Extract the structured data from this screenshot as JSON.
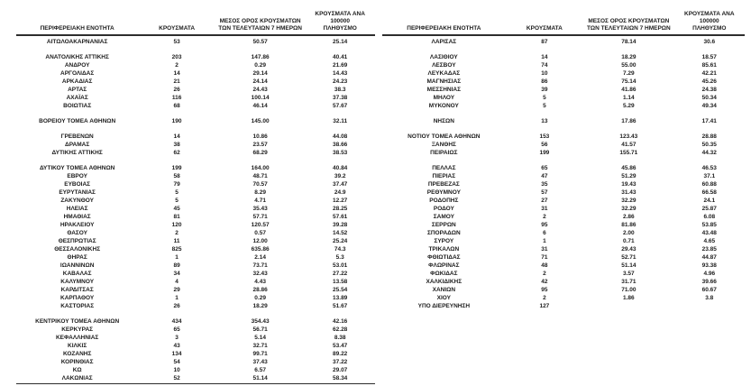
{
  "page": {
    "background_color": "#ffffff",
    "text_color": "#1c1c1c"
  },
  "columns": {
    "region": "ΠΕΡΙΦΕΡΕΙΑΚΗ ΕΝΟΤΗΤΑ",
    "cases": "ΚΡΟΥΣΜΑΤΑ",
    "avg7_line1": "ΜΕΣΟΣ ΟΡΟΣ ΚΡΟΥΣΜΑΤΩΝ",
    "avg7_line2": "ΤΩΝ ΤΕΛΕΥΤΑΙΩΝ 7 ΗΜΕΡΩΝ",
    "per100k_line1": "ΚΡΟΥΣΜΑΤΑ ΑΝΑ 100000",
    "per100k_line2": "ΠΛΗΘΥΣΜΟ"
  },
  "tables": [
    {
      "id": "left",
      "has_bottom_line": true,
      "groups": [
        [
          {
            "region": "ΑΙΤΩΛΟΑΚΑΡΝΑΝΙΑΣ",
            "cases": "53",
            "avg7": "50.57",
            "per100k": "25.14"
          }
        ],
        [
          {
            "region": "ΑΝΑΤΟΛΙΚΗΣ ΑΤΤΙΚΗΣ",
            "cases": "203",
            "avg7": "147.86",
            "per100k": "40.41"
          },
          {
            "region": "ΑΝΔΡΟΥ",
            "cases": "2",
            "avg7": "0.29",
            "per100k": "21.69"
          },
          {
            "region": "ΑΡΓΟΛΙΔΑΣ",
            "cases": "14",
            "avg7": "29.14",
            "per100k": "14.43"
          },
          {
            "region": "ΑΡΚΑΔΙΑΣ",
            "cases": "21",
            "avg7": "24.14",
            "per100k": "24.23"
          },
          {
            "region": "ΑΡΤΑΣ",
            "cases": "26",
            "avg7": "24.43",
            "per100k": "38.3"
          },
          {
            "region": "ΑΧΑΪΑΣ",
            "cases": "116",
            "avg7": "100.14",
            "per100k": "37.38"
          },
          {
            "region": "ΒΟΙΩΤΙΑΣ",
            "cases": "68",
            "avg7": "46.14",
            "per100k": "57.67"
          }
        ],
        [
          {
            "region": "ΒΟΡΕΙΟΥ ΤΟΜΕΑ ΑΘΗΝΩΝ",
            "cases": "190",
            "avg7": "145.00",
            "per100k": "32.11"
          }
        ],
        [
          {
            "region": "ΓΡΕΒΕΝΩΝ",
            "cases": "14",
            "avg7": "10.86",
            "per100k": "44.08"
          },
          {
            "region": "ΔΡΑΜΑΣ",
            "cases": "38",
            "avg7": "23.57",
            "per100k": "38.66"
          },
          {
            "region": "ΔΥΤΙΚΗΣ ΑΤΤΙΚΗΣ",
            "cases": "62",
            "avg7": "68.29",
            "per100k": "38.53"
          }
        ],
        [
          {
            "region": "ΔΥΤΙΚΟΥ ΤΟΜΕΑ ΑΘΗΝΩΝ",
            "cases": "199",
            "avg7": "164.00",
            "per100k": "40.84"
          },
          {
            "region": "ΕΒΡΟΥ",
            "cases": "58",
            "avg7": "48.71",
            "per100k": "39.2"
          },
          {
            "region": "ΕΥΒΟΙΑΣ",
            "cases": "79",
            "avg7": "70.57",
            "per100k": "37.47"
          },
          {
            "region": "ΕΥΡΥΤΑΝΙΑΣ",
            "cases": "5",
            "avg7": "8.29",
            "per100k": "24.9"
          },
          {
            "region": "ΖΑΚΥΝΘΟΥ",
            "cases": "5",
            "avg7": "4.71",
            "per100k": "12.27"
          },
          {
            "region": "ΗΛΕΙΑΣ",
            "cases": "45",
            "avg7": "35.43",
            "per100k": "28.25"
          },
          {
            "region": "ΗΜΑΘΙΑΣ",
            "cases": "81",
            "avg7": "57.71",
            "per100k": "57.61"
          },
          {
            "region": "ΗΡΑΚΛΕΙΟΥ",
            "cases": "120",
            "avg7": "120.57",
            "per100k": "39.28"
          },
          {
            "region": "ΘΑΣΟΥ",
            "cases": "2",
            "avg7": "0.57",
            "per100k": "14.52"
          },
          {
            "region": "ΘΕΣΠΡΩΤΙΑΣ",
            "cases": "11",
            "avg7": "12.00",
            "per100k": "25.24"
          },
          {
            "region": "ΘΕΣΣΑΛΟΝΙΚΗΣ",
            "cases": "825",
            "avg7": "635.86",
            "per100k": "74.3"
          },
          {
            "region": "ΘΗΡΑΣ",
            "cases": "1",
            "avg7": "2.14",
            "per100k": "5.3"
          },
          {
            "region": "ΙΩΑΝΝΙΝΩΝ",
            "cases": "89",
            "avg7": "73.71",
            "per100k": "53.01"
          },
          {
            "region": "ΚΑΒΑΛΑΣ",
            "cases": "34",
            "avg7": "32.43",
            "per100k": "27.22"
          },
          {
            "region": "ΚΑΛΥΜΝΟΥ",
            "cases": "4",
            "avg7": "4.43",
            "per100k": "13.58"
          },
          {
            "region": "ΚΑΡΔΙΤΣΑΣ",
            "cases": "29",
            "avg7": "28.86",
            "per100k": "25.54"
          },
          {
            "region": "ΚΑΡΠΑΘΟΥ",
            "cases": "1",
            "avg7": "0.29",
            "per100k": "13.89"
          },
          {
            "region": "ΚΑΣΤΟΡΙΑΣ",
            "cases": "26",
            "avg7": "18.29",
            "per100k": "51.67"
          }
        ],
        [
          {
            "region": "ΚΕΝΤΡΙΚΟΥ ΤΟΜΕΑ ΑΘΗΝΩΝ",
            "cases": "434",
            "avg7": "354.43",
            "per100k": "42.16"
          },
          {
            "region": "ΚΕΡΚΥΡΑΣ",
            "cases": "65",
            "avg7": "56.71",
            "per100k": "62.28"
          },
          {
            "region": "ΚΕΦΑΛΛΗΝΙΑΣ",
            "cases": "3",
            "avg7": "5.14",
            "per100k": "8.38"
          },
          {
            "region": "ΚΙΛΚΙΣ",
            "cases": "43",
            "avg7": "32.71",
            "per100k": "53.47"
          },
          {
            "region": "ΚΟΖΑΝΗΣ",
            "cases": "134",
            "avg7": "99.71",
            "per100k": "89.22"
          },
          {
            "region": "ΚΟΡΙΝΘΙΑΣ",
            "cases": "54",
            "avg7": "37.43",
            "per100k": "37.22"
          },
          {
            "region": "ΚΩ",
            "cases": "10",
            "avg7": "6.57",
            "per100k": "29.07"
          },
          {
            "region": "ΛΑΚΩΝΙΑΣ",
            "cases": "52",
            "avg7": "51.14",
            "per100k": "58.34"
          }
        ]
      ]
    },
    {
      "id": "right",
      "has_bottom_line": false,
      "groups": [
        [
          {
            "region": "ΛΑΡΙΣΑΣ",
            "cases": "87",
            "avg7": "78.14",
            "per100k": "30.6"
          }
        ],
        [
          {
            "region": "ΛΑΣΙΘΙΟΥ",
            "cases": "14",
            "avg7": "18.29",
            "per100k": "18.57"
          },
          {
            "region": "ΛΕΣΒΟΥ",
            "cases": "74",
            "avg7": "55.00",
            "per100k": "85.61"
          },
          {
            "region": "ΛΕΥΚΑΔΑΣ",
            "cases": "10",
            "avg7": "7.29",
            "per100k": "42.21"
          },
          {
            "region": "ΜΑΓΝΗΣΙΑΣ",
            "cases": "86",
            "avg7": "75.14",
            "per100k": "45.26"
          },
          {
            "region": "ΜΕΣΣΗΝΙΑΣ",
            "cases": "39",
            "avg7": "41.86",
            "per100k": "24.38"
          },
          {
            "region": "ΜΗΛΟΥ",
            "cases": "5",
            "avg7": "1.14",
            "per100k": "50.34"
          },
          {
            "region": "ΜΥΚΟΝΟΥ",
            "cases": "5",
            "avg7": "5.29",
            "per100k": "49.34"
          }
        ],
        [
          {
            "region": "ΝΗΣΩΝ",
            "cases": "13",
            "avg7": "17.86",
            "per100k": "17.41"
          }
        ],
        [
          {
            "region": "ΝΟΤΙΟΥ ΤΟΜΕΑ ΑΘΗΝΩΝ",
            "cases": "153",
            "avg7": "123.43",
            "per100k": "28.88"
          },
          {
            "region": "ΞΑΝΘΗΣ",
            "cases": "56",
            "avg7": "41.57",
            "per100k": "50.35"
          },
          {
            "region": "ΠΕΙΡΑΙΩΣ",
            "cases": "199",
            "avg7": "155.71",
            "per100k": "44.32"
          }
        ],
        [
          {
            "region": "ΠΕΛΛΑΣ",
            "cases": "65",
            "avg7": "45.86",
            "per100k": "46.53"
          },
          {
            "region": "ΠΙΕΡΙΑΣ",
            "cases": "47",
            "avg7": "51.29",
            "per100k": "37.1"
          },
          {
            "region": "ΠΡΕΒΕΖΑΣ",
            "cases": "35",
            "avg7": "19.43",
            "per100k": "60.88"
          },
          {
            "region": "ΡΕΘΥΜΝΟΥ",
            "cases": "57",
            "avg7": "31.43",
            "per100k": "66.58"
          },
          {
            "region": "ΡΟΔΟΠΗΣ",
            "cases": "27",
            "avg7": "32.29",
            "per100k": "24.1"
          },
          {
            "region": "ΡΟΔΟΥ",
            "cases": "31",
            "avg7": "32.29",
            "per100k": "25.87"
          },
          {
            "region": "ΣΑΜΟΥ",
            "cases": "2",
            "avg7": "2.86",
            "per100k": "6.08"
          },
          {
            "region": "ΣΕΡΡΩΝ",
            "cases": "95",
            "avg7": "81.86",
            "per100k": "53.85"
          },
          {
            "region": "ΣΠΟΡΑΔΩΝ",
            "cases": "6",
            "avg7": "2.00",
            "per100k": "43.48"
          },
          {
            "region": "ΣΥΡΟΥ",
            "cases": "1",
            "avg7": "0.71",
            "per100k": "4.65"
          },
          {
            "region": "ΤΡΙΚΑΛΩΝ",
            "cases": "31",
            "avg7": "29.43",
            "per100k": "23.85"
          },
          {
            "region": "ΦΘΙΩΤΙΔΑΣ",
            "cases": "71",
            "avg7": "52.71",
            "per100k": "44.87"
          },
          {
            "region": "ΦΛΩΡΙΝΑΣ",
            "cases": "48",
            "avg7": "51.14",
            "per100k": "93.38"
          },
          {
            "region": "ΦΩΚΙΔΑΣ",
            "cases": "2",
            "avg7": "3.57",
            "per100k": "4.96"
          },
          {
            "region": "ΧΑΛΚΙΔΙΚΗΣ",
            "cases": "42",
            "avg7": "31.71",
            "per100k": "39.66"
          },
          {
            "region": "ΧΑΝΙΩΝ",
            "cases": "95",
            "avg7": "71.00",
            "per100k": "60.67"
          },
          {
            "region": "ΧΙΟΥ",
            "cases": "2",
            "avg7": "1.86",
            "per100k": "3.8"
          },
          {
            "region": "ΥΠΟ ΔΙΕΡΕΥΝΗΣΗ",
            "cases": "127",
            "avg7": "",
            "per100k": ""
          }
        ]
      ]
    }
  ]
}
